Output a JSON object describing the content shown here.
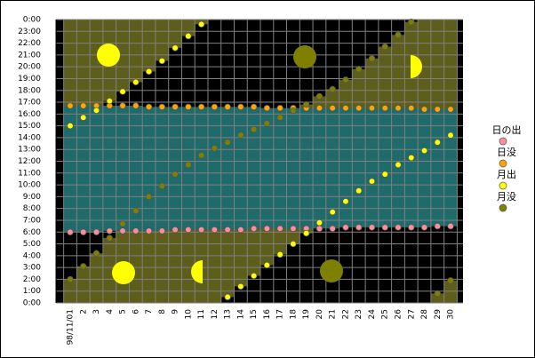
{
  "chart_data": {
    "type": "scatter",
    "categories": [
      "98/11/01",
      "2",
      "3",
      "4",
      "5",
      "6",
      "7",
      "8",
      "9",
      "10",
      "11",
      "12",
      "13",
      "14",
      "15",
      "16",
      "17",
      "18",
      "19",
      "20",
      "21",
      "22",
      "23",
      "24",
      "25",
      "26",
      "27",
      "28",
      "29",
      "30"
    ],
    "series": [
      {
        "name": "日の出",
        "color": "#ff8c9c",
        "values": [
          6.0,
          6.0,
          6.0,
          6.1,
          6.1,
          6.1,
          6.1,
          6.1,
          6.2,
          6.2,
          6.2,
          6.2,
          6.2,
          6.2,
          6.3,
          6.3,
          6.3,
          6.3,
          6.3,
          6.3,
          6.3,
          6.4,
          6.4,
          6.4,
          6.4,
          6.4,
          6.4,
          6.4,
          6.5,
          6.5
        ]
      },
      {
        "name": "日没",
        "color": "#ffa500",
        "values": [
          16.7,
          16.7,
          16.7,
          16.7,
          16.7,
          16.7,
          16.6,
          16.6,
          16.6,
          16.6,
          16.6,
          16.6,
          16.6,
          16.6,
          16.6,
          16.5,
          16.5,
          16.5,
          16.5,
          16.5,
          16.5,
          16.5,
          16.5,
          16.5,
          16.5,
          16.5,
          16.5,
          16.4,
          16.4,
          16.4
        ]
      },
      {
        "name": "月出",
        "color": "#ffff00",
        "values": [
          15.0,
          15.7,
          16.3,
          17.1,
          17.9,
          18.7,
          19.6,
          20.5,
          21.6,
          22.6,
          23.6,
          null,
          0.5,
          1.4,
          2.3,
          3.2,
          4.1,
          5.0,
          5.9,
          6.8,
          7.7,
          8.6,
          9.5,
          10.3,
          10.9,
          11.7,
          12.3,
          12.9,
          13.6,
          14.2
        ]
      },
      {
        "name": "月没",
        "color": "#808000",
        "values": [
          2.0,
          3.1,
          4.2,
          5.5,
          6.7,
          7.8,
          9.0,
          9.9,
          10.9,
          11.7,
          12.5,
          13.1,
          13.6,
          14.2,
          14.7,
          15.2,
          15.7,
          16.3,
          16.8,
          17.5,
          18.1,
          18.9,
          19.8,
          20.7,
          21.7,
          22.7,
          23.8,
          null,
          0.8,
          1.9
        ]
      }
    ],
    "ylim": [
      0,
      24
    ],
    "yticks": [
      {
        "value": 0,
        "label": "0:00"
      },
      {
        "value": 1,
        "label": "1:00"
      },
      {
        "value": 2,
        "label": "2:00"
      },
      {
        "value": 3,
        "label": "3:00"
      },
      {
        "value": 4,
        "label": "4:00"
      },
      {
        "value": 5,
        "label": "5:00"
      },
      {
        "value": 6,
        "label": "6:00"
      },
      {
        "value": 7,
        "label": "7:00"
      },
      {
        "value": 8,
        "label": "8:00"
      },
      {
        "value": 9,
        "label": "9:00"
      },
      {
        "value": 10,
        "label": "10:00"
      },
      {
        "value": 11,
        "label": "11:00"
      },
      {
        "value": 12,
        "label": "12:00"
      },
      {
        "value": 13,
        "label": "13:00"
      },
      {
        "value": 14,
        "label": "14:00"
      },
      {
        "value": 15,
        "label": "15:00"
      },
      {
        "value": 16,
        "label": "16:00"
      },
      {
        "value": 17,
        "label": "17:00"
      },
      {
        "value": 18,
        "label": "18:00"
      },
      {
        "value": 19,
        "label": "19:00"
      },
      {
        "value": 20,
        "label": "20:00"
      },
      {
        "value": 21,
        "label": "21:00"
      },
      {
        "value": 22,
        "label": "22:00"
      },
      {
        "value": 23,
        "label": "23:00"
      },
      {
        "value": 24,
        "label": "0:00"
      }
    ],
    "grid": true
  }
}
